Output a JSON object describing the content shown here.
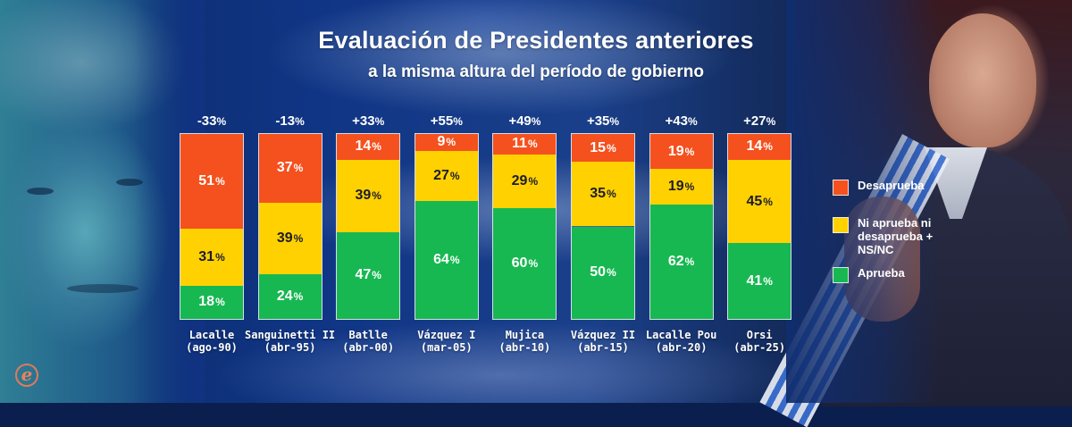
{
  "title": "Evaluación de Presidentes anteriores",
  "subtitle": "a la misma altura del período de gobierno",
  "logo_glyph": "e",
  "colors": {
    "desaprueba": "#F4511E",
    "ni_ni": "#FFD100",
    "aprueba": "#17B851",
    "background": "#103585"
  },
  "legend": [
    {
      "key": "desaprueba",
      "label": "Desaprueba",
      "color": "#F4511E"
    },
    {
      "key": "ni_ni",
      "label": "Ni aprueba ni desaprueba + NS/NC",
      "color": "#FFD100"
    },
    {
      "key": "aprueba",
      "label": "Aprueba",
      "color": "#17B851"
    }
  ],
  "chart_data": {
    "type": "bar",
    "stacked": true,
    "title": "Evaluación de Presidentes anteriores",
    "subtitle": "a la misma altura del período de gobierno",
    "xlabel": "",
    "ylabel": "",
    "ylim": [
      0,
      100
    ],
    "unit": "%",
    "grid": false,
    "legend_position": "right",
    "categories": [
      {
        "name": "Lacalle",
        "date": "(ago-90)"
      },
      {
        "name": "Sanguinetti II",
        "date": "(abr-95)"
      },
      {
        "name": "Batlle",
        "date": "(abr-00)"
      },
      {
        "name": "Vázquez I",
        "date": "(mar-05)"
      },
      {
        "name": "Mujica",
        "date": "(abr-10)"
      },
      {
        "name": "Vázquez II",
        "date": "(abr-15)"
      },
      {
        "name": "Lacalle Pou",
        "date": "(abr-20)"
      },
      {
        "name": "Orsi",
        "date": "(abr-25)"
      }
    ],
    "series": [
      {
        "name": "Desaprueba",
        "key": "desaprueba",
        "values": [
          51,
          37,
          14,
          9,
          11,
          15,
          19,
          14
        ]
      },
      {
        "name": "Ni aprueba ni desaprueba + NS/NC",
        "key": "ni_ni",
        "values": [
          31,
          39,
          39,
          27,
          29,
          35,
          19,
          45
        ]
      },
      {
        "name": "Aprueba",
        "key": "aprueba",
        "values": [
          18,
          24,
          47,
          64,
          60,
          50,
          62,
          41
        ]
      }
    ],
    "net_labels": [
      "-33",
      "-13",
      "+33",
      "+55",
      "+49",
      "+35",
      "+43",
      "+27"
    ]
  }
}
